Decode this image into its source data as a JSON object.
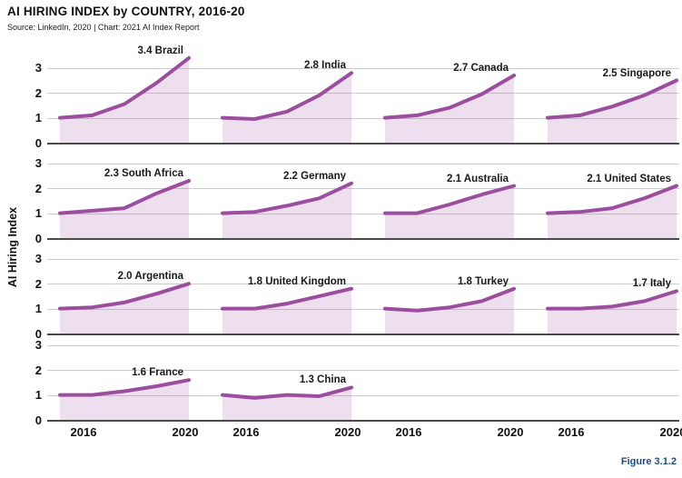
{
  "header": {
    "title": "AI HIRING INDEX by COUNTRY, 2016-20",
    "subtitle": "Source: LinkedIn, 2020 | Chart: 2021 AI Index Report"
  },
  "footer": {
    "figure_label": "Figure 3.1.2"
  },
  "chart_data": {
    "type": "area",
    "title": "AI HIRING INDEX by COUNTRY, 2016-20",
    "ylabel": "AI Hiring Index",
    "layout": "small multiples, 4 columns x 4 rows (14 panels)",
    "x": [
      2016,
      2017,
      2018,
      2019,
      2020
    ],
    "x_tick_labels": [
      "2016",
      "2020"
    ],
    "y_ticks": [
      3,
      2,
      1,
      0
    ],
    "ylim": [
      0,
      3.5
    ],
    "grid": true,
    "series": [
      {
        "name": "Brazil",
        "label": "3.4 Brazil",
        "final_value": 3.4,
        "values": [
          1.0,
          1.1,
          1.55,
          2.4,
          3.4
        ]
      },
      {
        "name": "India",
        "label": "2.8 India",
        "final_value": 2.8,
        "values": [
          1.0,
          0.95,
          1.25,
          1.9,
          2.8
        ]
      },
      {
        "name": "Canada",
        "label": "2.7 Canada",
        "final_value": 2.7,
        "values": [
          1.0,
          1.1,
          1.4,
          1.95,
          2.7
        ]
      },
      {
        "name": "Singapore",
        "label": "2.5 Singapore",
        "final_value": 2.5,
        "values": [
          1.0,
          1.1,
          1.45,
          1.9,
          2.5
        ]
      },
      {
        "name": "South Africa",
        "label": "2.3 South Africa",
        "final_value": 2.3,
        "values": [
          1.0,
          1.1,
          1.2,
          1.8,
          2.3
        ]
      },
      {
        "name": "Germany",
        "label": "2.2 Germany",
        "final_value": 2.2,
        "values": [
          1.0,
          1.05,
          1.3,
          1.6,
          2.2
        ]
      },
      {
        "name": "Australia",
        "label": "2.1 Australia",
        "final_value": 2.1,
        "values": [
          1.0,
          1.0,
          1.35,
          1.75,
          2.1
        ]
      },
      {
        "name": "United States",
        "label": "2.1 United States",
        "final_value": 2.1,
        "values": [
          1.0,
          1.05,
          1.2,
          1.6,
          2.1
        ]
      },
      {
        "name": "Argentina",
        "label": "2.0 Argentina",
        "final_value": 2.0,
        "values": [
          1.0,
          1.05,
          1.25,
          1.6,
          2.0
        ]
      },
      {
        "name": "United Kingdom",
        "label": "1.8 United Kingdom",
        "final_value": 1.8,
        "values": [
          1.0,
          1.0,
          1.2,
          1.5,
          1.8
        ]
      },
      {
        "name": "Turkey",
        "label": "1.8 Turkey",
        "final_value": 1.8,
        "values": [
          1.0,
          0.92,
          1.05,
          1.3,
          1.8
        ]
      },
      {
        "name": "Italy",
        "label": "1.7 Italy",
        "final_value": 1.7,
        "values": [
          1.0,
          1.0,
          1.08,
          1.3,
          1.7
        ]
      },
      {
        "name": "France",
        "label": "1.6 France",
        "final_value": 1.6,
        "values": [
          1.0,
          1.0,
          1.15,
          1.35,
          1.6
        ]
      },
      {
        "name": "China",
        "label": "1.3 China",
        "final_value": 1.3,
        "values": [
          1.0,
          0.88,
          1.0,
          0.95,
          1.3
        ]
      }
    ],
    "colors": {
      "line": "#9b4e9d",
      "fill": "#e9dcec",
      "grid": "#cccccc",
      "axis": "#4a4a4a",
      "text": "#1a1a1a",
      "figure_label": "#1b4e85"
    }
  }
}
